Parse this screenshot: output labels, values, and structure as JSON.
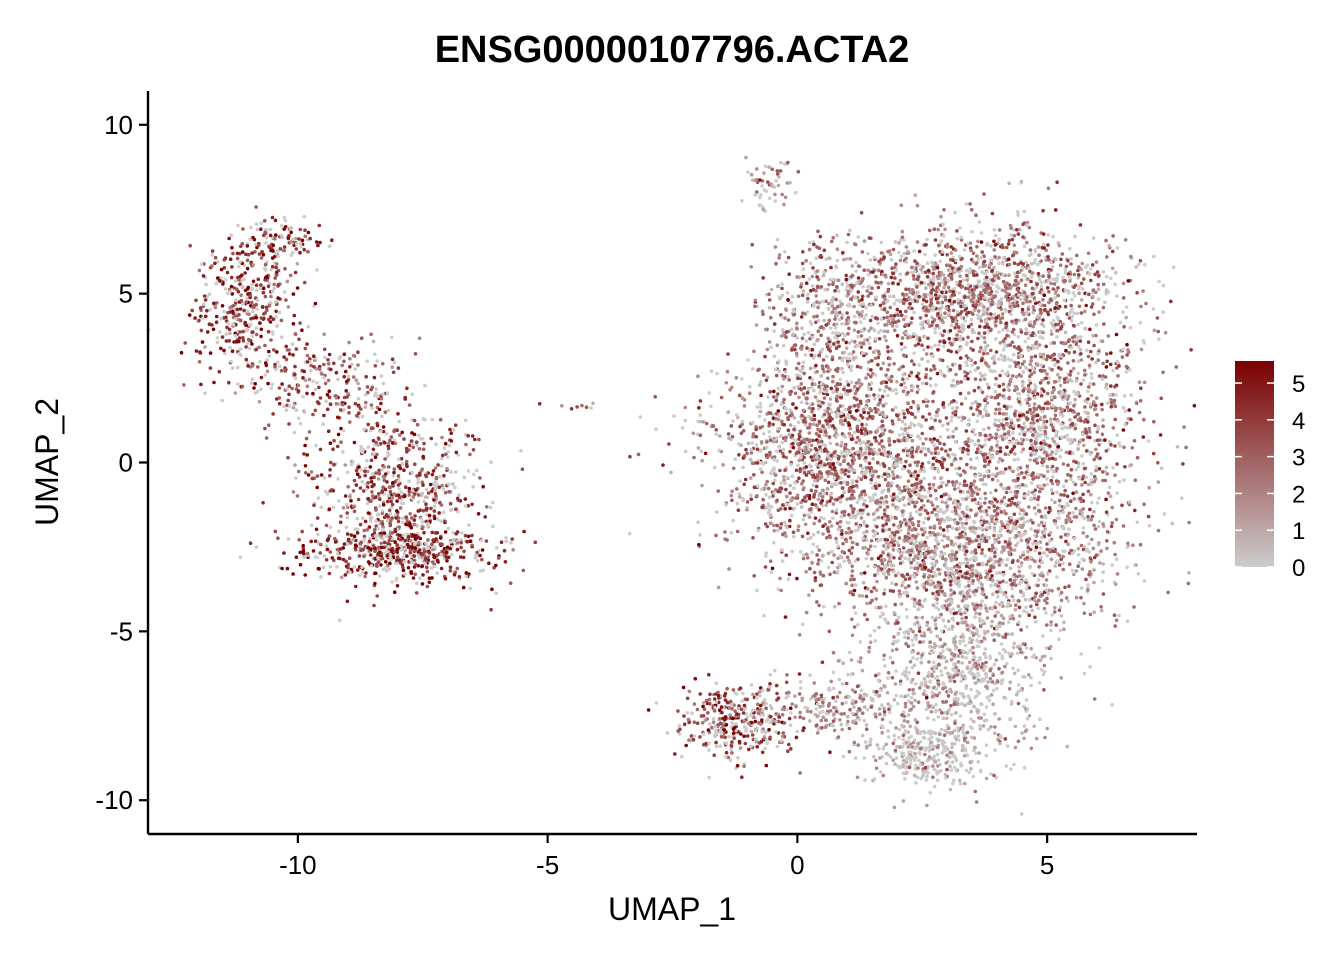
{
  "chart_data": {
    "type": "scatter",
    "title": "ENSG00000107796.ACTA2",
    "xlabel": "UMAP_1",
    "ylabel": "UMAP_2",
    "xlim": [
      -13,
      8
    ],
    "ylim": [
      -11,
      11
    ],
    "x_ticks": [
      -10,
      -5,
      0,
      5
    ],
    "y_ticks": [
      -10,
      -5,
      0,
      5,
      10
    ],
    "x_tick_labels": [
      "-10",
      "-5",
      "0",
      "5"
    ],
    "y_tick_labels": [
      "-10",
      "-5",
      "0",
      "5",
      "10"
    ],
    "grid": false,
    "color_scale": {
      "low": "#cccccc",
      "high": "#7a0000",
      "range": [
        0,
        5.6
      ],
      "ticks": [
        0,
        1,
        2,
        3,
        4,
        5
      ],
      "tick_labels": [
        "0",
        "1",
        "2",
        "3",
        "4",
        "5"
      ],
      "legend_position": "right"
    },
    "clusters": [
      {
        "name_hint": "left-upper-arm",
        "center": [
          -11.0,
          4.6
        ],
        "spread": [
          0.55,
          1.1
        ],
        "count": 420,
        "mean_expr": 4.3
      },
      {
        "name_hint": "left-top-curl",
        "center": [
          -10.3,
          6.6
        ],
        "spread": [
          0.5,
          0.3
        ],
        "count": 90,
        "mean_expr": 4.4
      },
      {
        "name_hint": "left-mid",
        "center": [
          -9.3,
          2.2
        ],
        "spread": [
          0.8,
          0.8
        ],
        "count": 220,
        "mean_expr": 3.6
      },
      {
        "name_hint": "left-lower-body",
        "center": [
          -8.0,
          -0.9
        ],
        "spread": [
          0.9,
          1.2
        ],
        "count": 620,
        "mean_expr": 3.9
      },
      {
        "name_hint": "left-bottom",
        "center": [
          -7.9,
          -2.6
        ],
        "spread": [
          0.95,
          0.45
        ],
        "count": 480,
        "mean_expr": 4.4
      },
      {
        "name_hint": "tiny-middle",
        "center": [
          -4.7,
          1.65
        ],
        "spread": [
          0.3,
          0.08
        ],
        "count": 8,
        "mean_expr": 2.5
      },
      {
        "name_hint": "right-top-stem",
        "center": [
          -0.6,
          8.2
        ],
        "spread": [
          0.25,
          0.45
        ],
        "count": 55,
        "mean_expr": 2.0
      },
      {
        "name_hint": "right-upper",
        "center": [
          3.4,
          5.0
        ],
        "spread": [
          1.5,
          1.0
        ],
        "count": 1300,
        "mean_expr": 2.7
      },
      {
        "name_hint": "right-left-lobe",
        "center": [
          0.9,
          0.4
        ],
        "spread": [
          1.3,
          1.6
        ],
        "count": 1700,
        "mean_expr": 2.8
      },
      {
        "name_hint": "right-right-lobe",
        "center": [
          4.8,
          1.2
        ],
        "spread": [
          1.1,
          2.3
        ],
        "count": 1500,
        "mean_expr": 2.7
      },
      {
        "name_hint": "right-center-low",
        "center": [
          3.2,
          -2.8
        ],
        "spread": [
          1.5,
          1.2
        ],
        "count": 1300,
        "mean_expr": 2.3
      },
      {
        "name_hint": "right-lower-stem",
        "center": [
          3.3,
          -6.2
        ],
        "spread": [
          0.9,
          1.4
        ],
        "count": 700,
        "mean_expr": 1.0
      },
      {
        "name_hint": "right-bottom",
        "center": [
          2.6,
          -8.6
        ],
        "spread": [
          0.6,
          0.5
        ],
        "count": 260,
        "mean_expr": 0.5
      },
      {
        "name_hint": "right-bottom-left-hook",
        "center": [
          -1.3,
          -7.7
        ],
        "spread": [
          0.55,
          0.55
        ],
        "count": 320,
        "mean_expr": 4.0
      },
      {
        "name_hint": "right-hook-connector",
        "center": [
          0.8,
          -7.3
        ],
        "spread": [
          1.0,
          0.5
        ],
        "count": 250,
        "mean_expr": 2.0
      },
      {
        "name_hint": "right-upper-left-scatter",
        "center": [
          0.5,
          4.2
        ],
        "spread": [
          0.6,
          1.2
        ],
        "count": 320,
        "mean_expr": 2.4
      }
    ]
  }
}
